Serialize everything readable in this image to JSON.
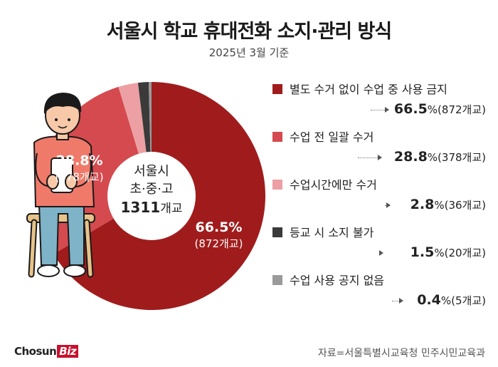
{
  "title": "서울시 학교 휴대전화 소지·관리 방식",
  "subtitle": "2025년 3월 기준",
  "center": {
    "line1": "서울시",
    "line2": "초·중·고",
    "count": "1311",
    "unit": "개교"
  },
  "chart_data": {
    "type": "pie",
    "slices": [
      {
        "label": "별도 수거 없이 수업 중 사용 금지",
        "value": 66.5,
        "value_text": "66.5",
        "count_text": "(872개교)",
        "color": "#a01c1c"
      },
      {
        "label": "수업 전 일괄 수거",
        "value": 28.8,
        "value_text": "28.8",
        "count_text": "(378개교)",
        "color": "#d44a4e"
      },
      {
        "label": "수업시간에만 수거",
        "value": 2.8,
        "value_text": "2.8",
        "count_text": "(36개교)",
        "color": "#eca0a4"
      },
      {
        "label": "등교 시 소지 불가",
        "value": 1.5,
        "value_text": "1.5",
        "count_text": "(20개교)",
        "color": "#3a3a3a"
      },
      {
        "label": "수업 사용 공지 없음",
        "value": 0.4,
        "value_text": "0.4",
        "count_text": "(5개교)",
        "color": "#9a9a9a"
      }
    ],
    "pct_symbol": "%",
    "labels_on_pie": [
      0,
      1
    ]
  },
  "footer": {
    "logo_main": "Chosun",
    "logo_accent": "Biz",
    "source": "자료=서울특별시교육청 민주시민교육과"
  }
}
